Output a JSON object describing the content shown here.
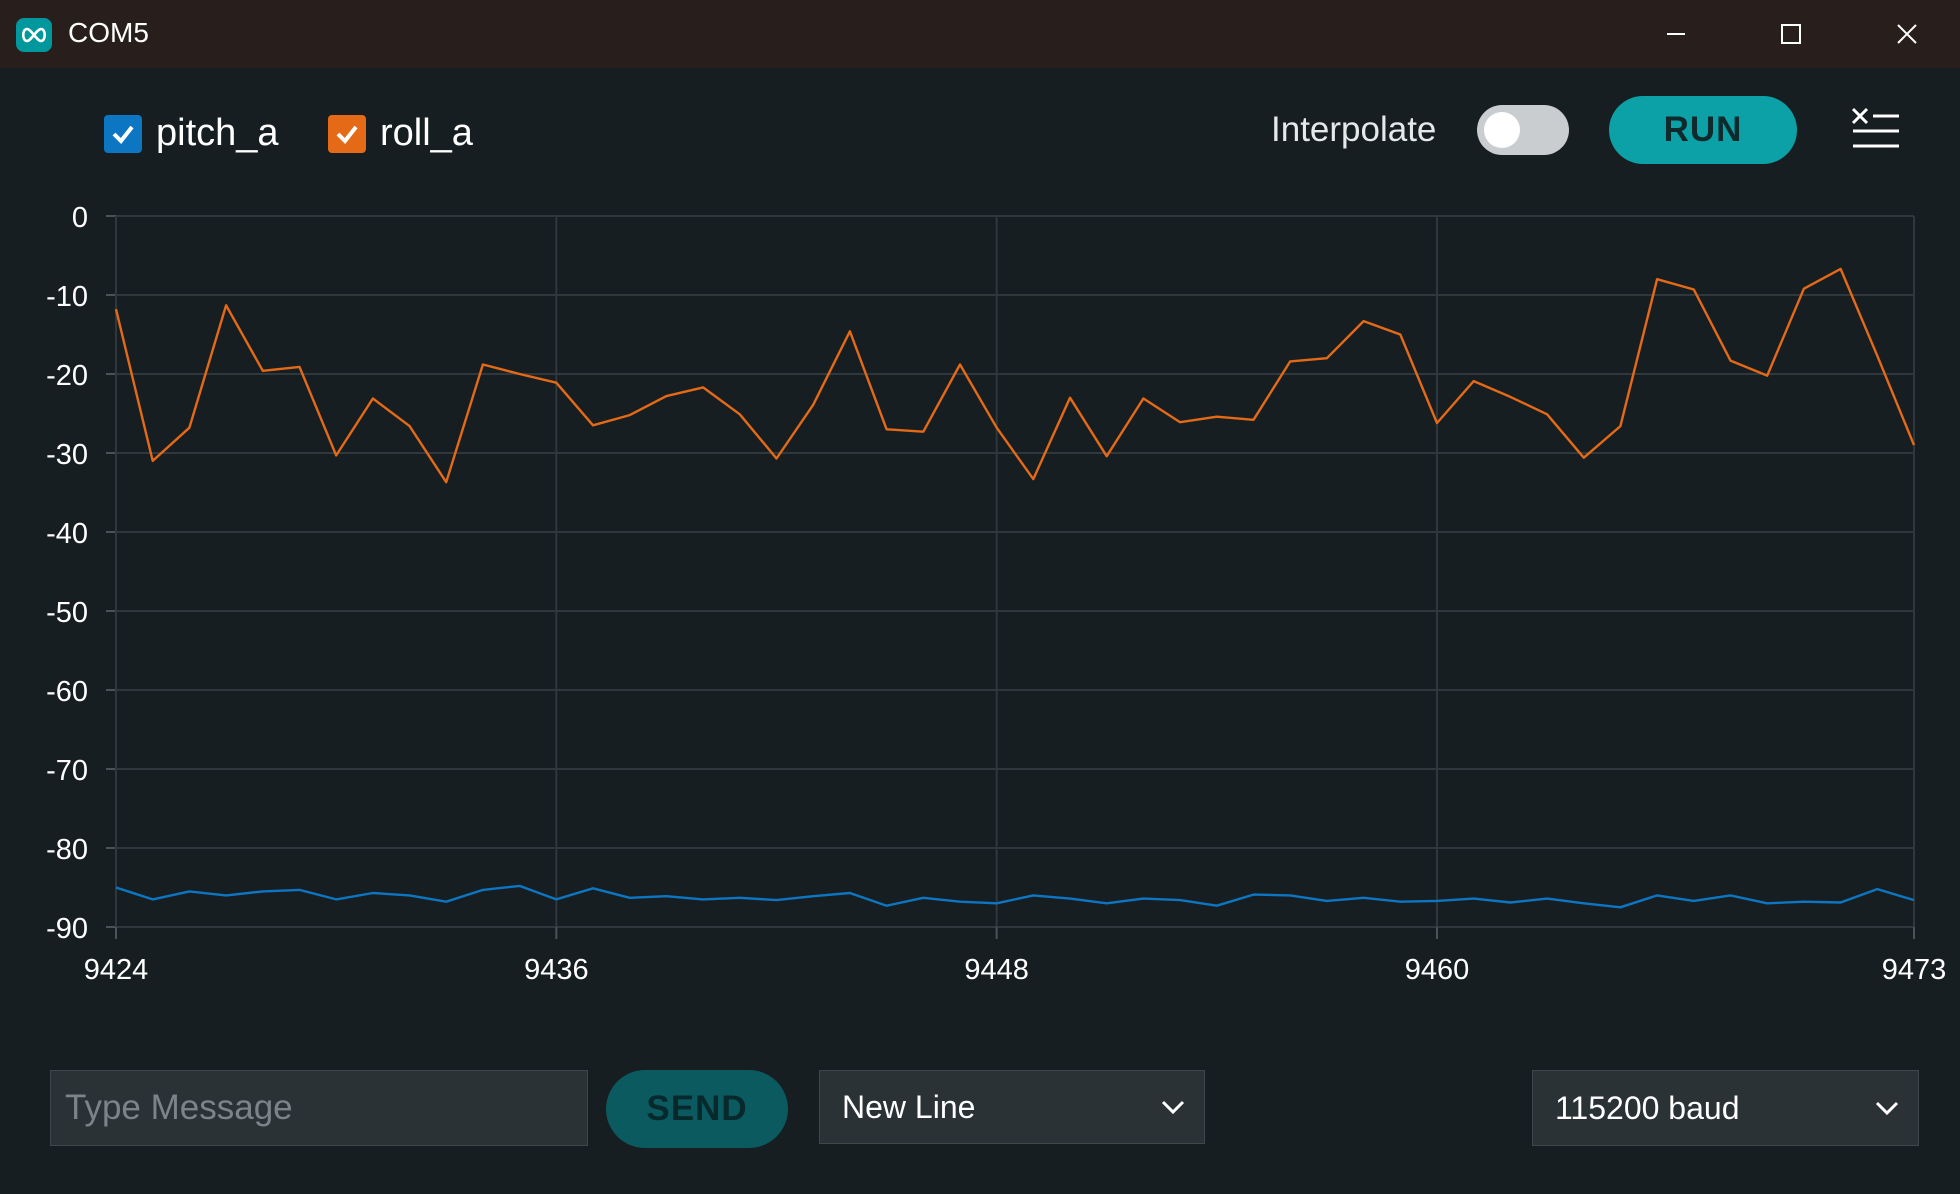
{
  "window": {
    "title": "COM5",
    "icon": "arduino-infinity-icon",
    "controls": [
      "minimize-icon",
      "maximize-icon",
      "close-icon"
    ]
  },
  "toolbar": {
    "interpolate_label": "Interpolate",
    "interpolate_on": false,
    "run_label": "RUN",
    "clear_icon": "clear-output-icon"
  },
  "legend": [
    {
      "label": "pitch_a",
      "checked": true,
      "color": "#0d76c2"
    },
    {
      "label": "roll_a",
      "checked": true,
      "color": "#e46a17"
    }
  ],
  "chart_data": {
    "type": "line",
    "ylim": [
      -90,
      0
    ],
    "xlim": [
      9424,
      9473
    ],
    "yticks": [
      "0",
      "-10",
      "-20",
      "-30",
      "-40",
      "-50",
      "-60",
      "-70",
      "-80",
      "-90"
    ],
    "xticks": [
      "9424",
      "9436",
      "9448",
      "9460",
      "9473"
    ],
    "grid": true,
    "x": [
      9424,
      9425,
      9426,
      9427,
      9428,
      9429,
      9430,
      9431,
      9432,
      9433,
      9434,
      9435,
      9436,
      9437,
      9438,
      9439,
      9440,
      9441,
      9442,
      9443,
      9444,
      9445,
      9446,
      9447,
      9448,
      9449,
      9450,
      9451,
      9452,
      9453,
      9454,
      9455,
      9456,
      9457,
      9458,
      9459,
      9460,
      9461,
      9462,
      9463,
      9464,
      9465,
      9466,
      9467,
      9468,
      9469,
      9470,
      9471,
      9472,
      9473
    ],
    "series": [
      {
        "name": "pitch_a",
        "color": "#0d76c2",
        "values": [
          -85,
          -86.5,
          -85.5,
          -86,
          -85.5,
          -85.3,
          -86.5,
          -85.7,
          -86,
          -86.8,
          -85.3,
          -84.8,
          -86.5,
          -85.1,
          -86.3,
          -86.1,
          -86.5,
          -86.3,
          -86.6,
          -86.1,
          -85.7,
          -87.3,
          -86.3,
          -86.8,
          -87,
          -86,
          -86.4,
          -87,
          -86.4,
          -86.6,
          -87.3,
          -85.9,
          -86,
          -86.7,
          -86.3,
          -86.8,
          -86.7,
          -86.4,
          -86.9,
          -86.4,
          -87,
          -87.5,
          -86,
          -86.7,
          -86,
          -87,
          -86.8,
          -86.9,
          -85.2,
          -86.6
        ]
      },
      {
        "name": "roll_a",
        "color": "#e46a17",
        "values": [
          -11.8,
          -31,
          -26.8,
          -11.3,
          -19.6,
          -19.1,
          -30.3,
          -23.1,
          -26.6,
          -33.7,
          -18.8,
          -20,
          -21.1,
          -26.5,
          -25.2,
          -22.8,
          -21.7,
          -25.1,
          -30.7,
          -23.9,
          -14.6,
          -27,
          -27.3,
          -18.8,
          -26.8,
          -33.3,
          -23,
          -30.4,
          -23.1,
          -26.1,
          -25.4,
          -25.8,
          -18.4,
          -18,
          -13.3,
          -15,
          -26.2,
          -20.9,
          -22.9,
          -25.1,
          -30.6,
          -26.6,
          -8,
          -9.3,
          -18.3,
          -20.2,
          -9.2,
          -6.7,
          -17.7,
          -29
        ]
      }
    ]
  },
  "bottom": {
    "message_placeholder": "Type Message",
    "message_value": "",
    "send_label": "SEND",
    "line_ending": "New Line",
    "baud": "115200 baud"
  }
}
